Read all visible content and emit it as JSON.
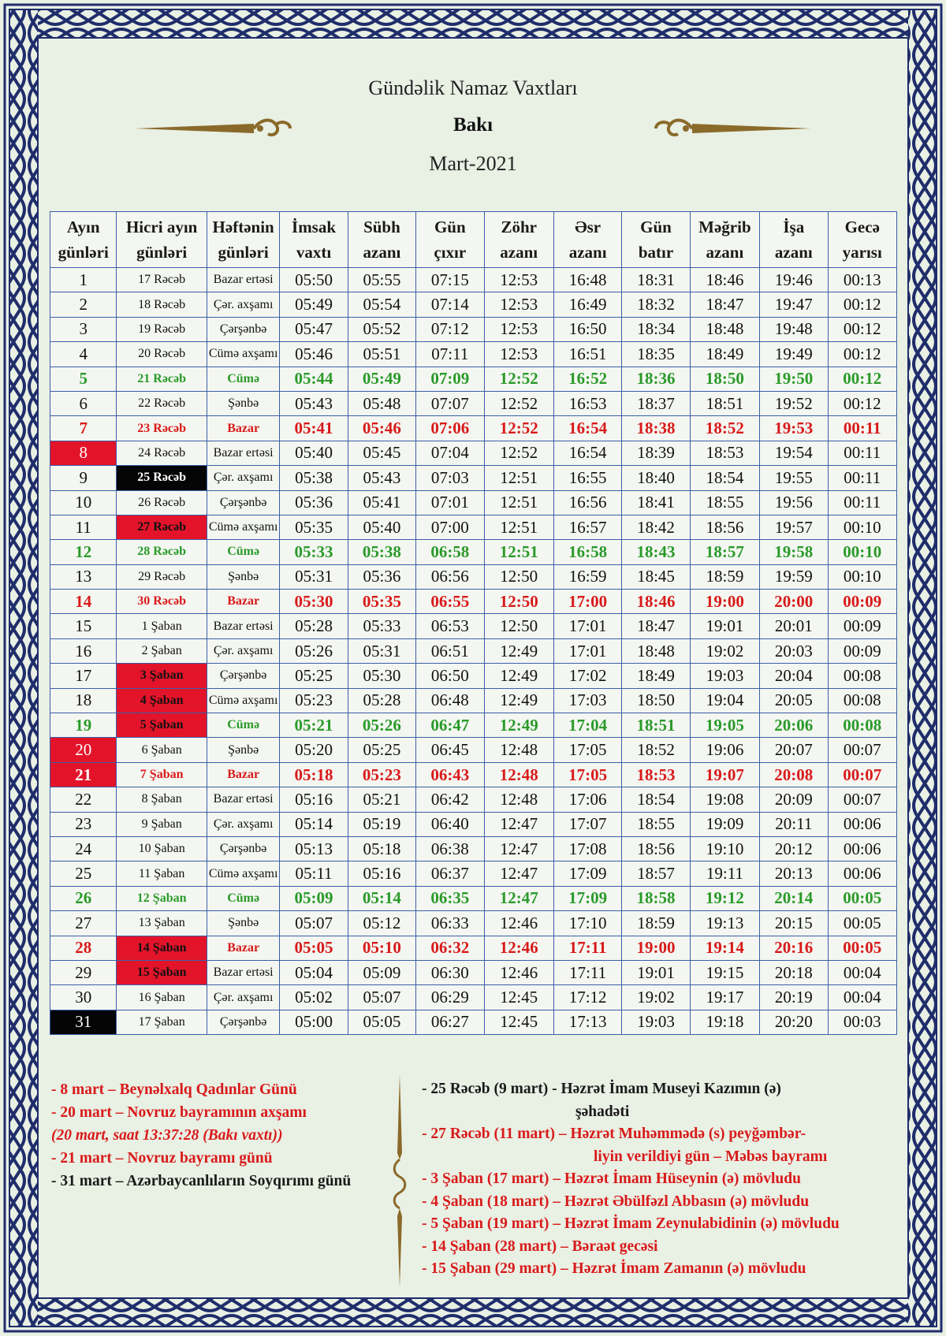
{
  "header": {
    "title": "Gündəlik Namaz Vaxtları",
    "city": "Bakı",
    "month": "Mart-2021"
  },
  "table": {
    "columns": [
      [
        "Ayın",
        "günləri"
      ],
      [
        "Hicri ayın",
        "günləri"
      ],
      [
        "Həftənin",
        "günləri"
      ],
      [
        "İmsak",
        "vaxtı"
      ],
      [
        "Sübh",
        "azanı"
      ],
      [
        "Gün",
        "çıxır"
      ],
      [
        "Zöhr",
        "azanı"
      ],
      [
        "Əsr",
        "azanı"
      ],
      [
        "Gün",
        "batır"
      ],
      [
        "Məğrib",
        "azanı"
      ],
      [
        "İşa",
        "azanı"
      ],
      [
        "Gecə",
        "yarısı"
      ]
    ],
    "rows": [
      {
        "cells": [
          "1",
          "17 Rəcəb",
          "Bazar ertəsi",
          "05:50",
          "05:55",
          "07:15",
          "12:53",
          "16:48",
          "18:31",
          "18:46",
          "19:46",
          "00:13"
        ],
        "style": "normal",
        "day_hl": "",
        "hijri_hl": ""
      },
      {
        "cells": [
          "2",
          "18 Rəcəb",
          "Çər. axşamı",
          "05:49",
          "05:54",
          "07:14",
          "12:53",
          "16:49",
          "18:32",
          "18:47",
          "19:47",
          "00:12"
        ],
        "style": "normal",
        "day_hl": "",
        "hijri_hl": ""
      },
      {
        "cells": [
          "3",
          "19 Rəcəb",
          "Çərşənbə",
          "05:47",
          "05:52",
          "07:12",
          "12:53",
          "16:50",
          "18:34",
          "18:48",
          "19:48",
          "00:12"
        ],
        "style": "normal",
        "day_hl": "",
        "hijri_hl": ""
      },
      {
        "cells": [
          "4",
          "20 Rəcəb",
          "Cümə axşamı",
          "05:46",
          "05:51",
          "07:11",
          "12:53",
          "16:51",
          "18:35",
          "18:49",
          "19:49",
          "00:12"
        ],
        "style": "normal",
        "day_hl": "",
        "hijri_hl": ""
      },
      {
        "cells": [
          "5",
          "21 Rəcəb",
          "Cümə",
          "05:44",
          "05:49",
          "07:09",
          "12:52",
          "16:52",
          "18:36",
          "18:50",
          "19:50",
          "00:12"
        ],
        "style": "fri",
        "day_hl": "",
        "hijri_hl": ""
      },
      {
        "cells": [
          "6",
          "22 Rəcəb",
          "Şənbə",
          "05:43",
          "05:48",
          "07:07",
          "12:52",
          "16:53",
          "18:37",
          "18:51",
          "19:52",
          "00:12"
        ],
        "style": "normal",
        "day_hl": "",
        "hijri_hl": ""
      },
      {
        "cells": [
          "7",
          "23 Rəcəb",
          "Bazar",
          "05:41",
          "05:46",
          "07:06",
          "12:52",
          "16:54",
          "18:38",
          "18:52",
          "19:53",
          "00:11"
        ],
        "style": "sun",
        "day_hl": "",
        "hijri_hl": ""
      },
      {
        "cells": [
          "8",
          "24 Rəcəb",
          "Bazar ertəsi",
          "05:40",
          "05:45",
          "07:04",
          "12:52",
          "16:54",
          "18:39",
          "18:53",
          "19:54",
          "00:11"
        ],
        "style": "normal",
        "day_hl": "red",
        "hijri_hl": ""
      },
      {
        "cells": [
          "9",
          "25 Rəcəb",
          "Çər. axşamı",
          "05:38",
          "05:43",
          "07:03",
          "12:51",
          "16:55",
          "18:40",
          "18:54",
          "19:55",
          "00:11"
        ],
        "style": "normal",
        "day_hl": "",
        "hijri_hl": "black"
      },
      {
        "cells": [
          "10",
          "26 Rəcəb",
          "Çərşənbə",
          "05:36",
          "05:41",
          "07:01",
          "12:51",
          "16:56",
          "18:41",
          "18:55",
          "19:56",
          "00:11"
        ],
        "style": "normal",
        "day_hl": "",
        "hijri_hl": ""
      },
      {
        "cells": [
          "11",
          "27 Rəcəb",
          "Cümə axşamı",
          "05:35",
          "05:40",
          "07:00",
          "12:51",
          "16:57",
          "18:42",
          "18:56",
          "19:57",
          "00:10"
        ],
        "style": "normal",
        "day_hl": "",
        "hijri_hl": "red"
      },
      {
        "cells": [
          "12",
          "28 Rəcəb",
          "Cümə",
          "05:33",
          "05:38",
          "06:58",
          "12:51",
          "16:58",
          "18:43",
          "18:57",
          "19:58",
          "00:10"
        ],
        "style": "fri",
        "day_hl": "",
        "hijri_hl": ""
      },
      {
        "cells": [
          "13",
          "29 Rəcəb",
          "Şənbə",
          "05:31",
          "05:36",
          "06:56",
          "12:50",
          "16:59",
          "18:45",
          "18:59",
          "19:59",
          "00:10"
        ],
        "style": "normal",
        "day_hl": "",
        "hijri_hl": ""
      },
      {
        "cells": [
          "14",
          "30 Rəcəb",
          "Bazar",
          "05:30",
          "05:35",
          "06:55",
          "12:50",
          "17:00",
          "18:46",
          "19:00",
          "20:00",
          "00:09"
        ],
        "style": "sun",
        "day_hl": "",
        "hijri_hl": ""
      },
      {
        "cells": [
          "15",
          "1 Şaban",
          "Bazar ertəsi",
          "05:28",
          "05:33",
          "06:53",
          "12:50",
          "17:01",
          "18:47",
          "19:01",
          "20:01",
          "00:09"
        ],
        "style": "normal",
        "day_hl": "",
        "hijri_hl": ""
      },
      {
        "cells": [
          "16",
          "2 Şaban",
          "Çər. axşamı",
          "05:26",
          "05:31",
          "06:51",
          "12:49",
          "17:01",
          "18:48",
          "19:02",
          "20:03",
          "00:09"
        ],
        "style": "normal",
        "day_hl": "",
        "hijri_hl": ""
      },
      {
        "cells": [
          "17",
          "3 Şaban",
          "Çərşənbə",
          "05:25",
          "05:30",
          "06:50",
          "12:49",
          "17:02",
          "18:49",
          "19:03",
          "20:04",
          "00:08"
        ],
        "style": "normal",
        "day_hl": "",
        "hijri_hl": "red"
      },
      {
        "cells": [
          "18",
          "4 Şaban",
          "Cümə axşamı",
          "05:23",
          "05:28",
          "06:48",
          "12:49",
          "17:03",
          "18:50",
          "19:04",
          "20:05",
          "00:08"
        ],
        "style": "normal",
        "day_hl": "",
        "hijri_hl": "red"
      },
      {
        "cells": [
          "19",
          "5 Şaban",
          "Cümə",
          "05:21",
          "05:26",
          "06:47",
          "12:49",
          "17:04",
          "18:51",
          "19:05",
          "20:06",
          "00:08"
        ],
        "style": "fri",
        "day_hl": "",
        "hijri_hl": "red"
      },
      {
        "cells": [
          "20",
          "6 Şaban",
          "Şənbə",
          "05:20",
          "05:25",
          "06:45",
          "12:48",
          "17:05",
          "18:52",
          "19:06",
          "20:07",
          "00:07"
        ],
        "style": "normal",
        "day_hl": "red",
        "hijri_hl": ""
      },
      {
        "cells": [
          "21",
          "7 Şaban",
          "Bazar",
          "05:18",
          "05:23",
          "06:43",
          "12:48",
          "17:05",
          "18:53",
          "19:07",
          "20:08",
          "00:07"
        ],
        "style": "sun",
        "day_hl": "red",
        "hijri_hl": ""
      },
      {
        "cells": [
          "22",
          "8 Şaban",
          "Bazar ertəsi",
          "05:16",
          "05:21",
          "06:42",
          "12:48",
          "17:06",
          "18:54",
          "19:08",
          "20:09",
          "00:07"
        ],
        "style": "normal",
        "day_hl": "",
        "hijri_hl": ""
      },
      {
        "cells": [
          "23",
          "9 Şaban",
          "Çər. axşamı",
          "05:14",
          "05:19",
          "06:40",
          "12:47",
          "17:07",
          "18:55",
          "19:09",
          "20:11",
          "00:06"
        ],
        "style": "normal",
        "day_hl": "",
        "hijri_hl": ""
      },
      {
        "cells": [
          "24",
          "10 Şaban",
          "Çərşənbə",
          "05:13",
          "05:18",
          "06:38",
          "12:47",
          "17:08",
          "18:56",
          "19:10",
          "20:12",
          "00:06"
        ],
        "style": "normal",
        "day_hl": "",
        "hijri_hl": ""
      },
      {
        "cells": [
          "25",
          "11 Şaban",
          "Cümə axşamı",
          "05:11",
          "05:16",
          "06:37",
          "12:47",
          "17:09",
          "18:57",
          "19:11",
          "20:13",
          "00:06"
        ],
        "style": "normal",
        "day_hl": "",
        "hijri_hl": ""
      },
      {
        "cells": [
          "26",
          "12 Şaban",
          "Cümə",
          "05:09",
          "05:14",
          "06:35",
          "12:47",
          "17:09",
          "18:58",
          "19:12",
          "20:14",
          "00:05"
        ],
        "style": "fri",
        "day_hl": "",
        "hijri_hl": ""
      },
      {
        "cells": [
          "27",
          "13 Şaban",
          "Şənbə",
          "05:07",
          "05:12",
          "06:33",
          "12:46",
          "17:10",
          "18:59",
          "19:13",
          "20:15",
          "00:05"
        ],
        "style": "normal",
        "day_hl": "",
        "hijri_hl": ""
      },
      {
        "cells": [
          "28",
          "14 Şaban",
          "Bazar",
          "05:05",
          "05:10",
          "06:32",
          "12:46",
          "17:11",
          "19:00",
          "19:14",
          "20:16",
          "00:05"
        ],
        "style": "sun",
        "day_hl": "",
        "hijri_hl": "red"
      },
      {
        "cells": [
          "29",
          "15 Şaban",
          "Bazar ertəsi",
          "05:04",
          "05:09",
          "06:30",
          "12:46",
          "17:11",
          "19:01",
          "19:15",
          "20:18",
          "00:04"
        ],
        "style": "normal",
        "day_hl": "",
        "hijri_hl": "red"
      },
      {
        "cells": [
          "30",
          "16 Şaban",
          "Çər. axşamı",
          "05:02",
          "05:07",
          "06:29",
          "12:45",
          "17:12",
          "19:02",
          "19:17",
          "20:19",
          "00:04"
        ],
        "style": "normal",
        "day_hl": "",
        "hijri_hl": ""
      },
      {
        "cells": [
          "31",
          "17 Şaban",
          "Çərşənbə",
          "05:00",
          "05:05",
          "06:27",
          "12:45",
          "17:13",
          "19:03",
          "19:18",
          "20:20",
          "00:03"
        ],
        "style": "normal",
        "day_hl": "black",
        "hijri_hl": ""
      }
    ]
  },
  "notes_left": [
    {
      "text": "- 8 mart – Beynəlxalq Qadınlar Günü",
      "color": "red",
      "italic": false
    },
    {
      "text": "- 20 mart – Novruz bayramının axşamı",
      "color": "red",
      "italic": false
    },
    {
      "text": "(20 mart, saat 13:37:28 (Bakı vaxtı))",
      "color": "red",
      "italic": true
    },
    {
      "text": "- 21 mart – Novruz bayramı günü",
      "color": "red",
      "italic": false
    },
    {
      "text": "- 31 mart – Azərbaycanlıların Soyqırımı günü",
      "color": "black",
      "italic": false
    }
  ],
  "notes_right": [
    {
      "text": "- 25 Rəcəb (9 mart) - Həzrət İmam Museyi Kazımın (ə)",
      "color": "black",
      "indent": 0
    },
    {
      "text": "şəhadəti",
      "color": "black",
      "indent": 1
    },
    {
      "text": "- 27 Rəcəb (11 mart) – Həzrət Muhəmmədə (s) peyğəmbər-",
      "color": "red",
      "indent": 0
    },
    {
      "text": "liyin verildiyi gün – Məbəs bayramı",
      "color": "red",
      "indent": 2
    },
    {
      "text": "- 3 Şaban (17 mart) – Həzrət İmam Hüseynin (ə) mövludu",
      "color": "red",
      "indent": 0
    },
    {
      "text": "- 4 Şaban (18 mart) – Həzrət Əbülfəzl Abbasın (ə) mövludu",
      "color": "red",
      "indent": 0
    },
    {
      "text": "- 5 Şaban (19 mart) – Həzrət İmam Zeynulabidinin (ə) mövludu",
      "color": "red",
      "indent": 0
    },
    {
      "text": "- 14 Şaban (28 mart) – Bəraət gecəsi",
      "color": "red",
      "indent": 0
    },
    {
      "text": "- 15 Şaban (29 mart) – Həzrət İmam Zamanın (ə) mövludu",
      "color": "red",
      "indent": 0
    }
  ],
  "colors": {
    "border": "#1f2d6b",
    "friday": "#2a9a2a",
    "sunday": "#d81a1a",
    "highlight_red": "#e3142a",
    "ornament": "#8a6a2a"
  }
}
